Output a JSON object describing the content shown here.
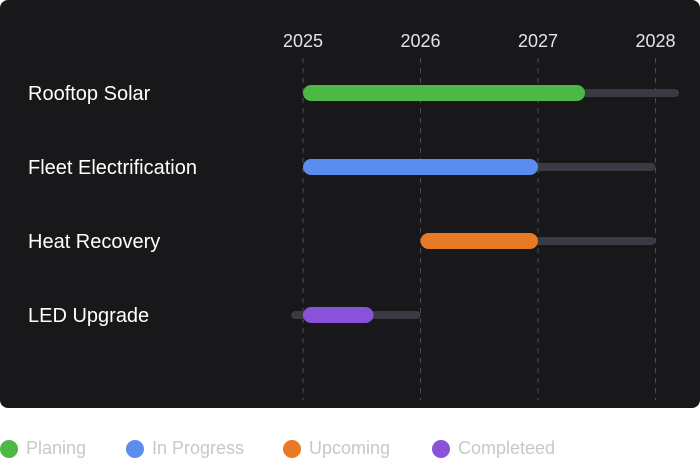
{
  "chart_data": {
    "type": "gantt",
    "x_axis": {
      "ticks": [
        "2025",
        "2026",
        "2027",
        "2028"
      ],
      "range": [
        2025,
        2028
      ]
    },
    "tasks": [
      {
        "label": "Rooftop Solar",
        "status": "Planing",
        "start": 2025.0,
        "end": 2027.4,
        "track_start": 2025.0,
        "track_end": 2028.2
      },
      {
        "label": "Fleet Electrification",
        "status": "In Progress",
        "start": 2025.0,
        "end": 2027.0,
        "track_start": 2025.0,
        "track_end": 2028.0
      },
      {
        "label": "Heat Recovery",
        "status": "Upcoming",
        "start": 2026.0,
        "end": 2027.0,
        "track_start": 2026.0,
        "track_end": 2028.0
      },
      {
        "label": "LED Upgrade",
        "status": "Completeed",
        "start": 2025.0,
        "end": 2025.6,
        "track_start": 2024.9,
        "track_end": 2026.0
      }
    ],
    "legend": [
      {
        "label": "Planing",
        "color": "#4cb944"
      },
      {
        "label": "In Progress",
        "color": "#5b8def"
      },
      {
        "label": "Upcoming",
        "color": "#e87a26"
      },
      {
        "label": "Completeed",
        "color": "#8a52d8"
      }
    ],
    "colors": {
      "background": "#18181b",
      "track": "#3a3a42",
      "grid": "#4a4a52",
      "text": "#ffffff",
      "tick_text": "#e4e4e7"
    }
  }
}
